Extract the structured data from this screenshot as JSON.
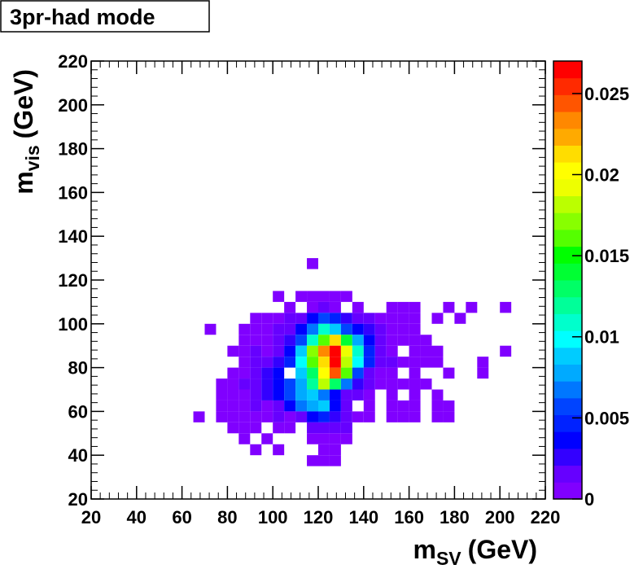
{
  "chart_data": {
    "type": "heatmap",
    "title": "3pr-had mode",
    "xlabel": {
      "main": "m",
      "sub": "SV",
      "unit": "(GeV)"
    },
    "ylabel": {
      "main": "m",
      "sub": "vis",
      "unit": "(GeV)"
    },
    "xlim": [
      20,
      220
    ],
    "ylim": [
      20,
      220
    ],
    "xticks": [
      20,
      40,
      60,
      80,
      100,
      120,
      140,
      160,
      180,
      200,
      220
    ],
    "yticks": [
      20,
      40,
      60,
      80,
      100,
      120,
      140,
      160,
      180,
      200,
      220
    ],
    "zlim": [
      0,
      0.027
    ],
    "zticks": [
      0,
      0.005,
      0.01,
      0.015,
      0.02,
      0.025
    ],
    "palette": [
      "#8000ff",
      "#6600ff",
      "#3300ff",
      "#0000ff",
      "#0022ff",
      "#0044ff",
      "#0077ff",
      "#00aaff",
      "#00ccff",
      "#00ffff",
      "#00ffcc",
      "#00ff99",
      "#00ff66",
      "#00ff33",
      "#00ff00",
      "#55ff00",
      "#88ff00",
      "#bbff00",
      "#eeff00",
      "#ffff00",
      "#ffdd00",
      "#ffaa00",
      "#ff8800",
      "#ff5500",
      "#ff2a00",
      "#ff0000"
    ],
    "rows": [
      {
        "y": 125,
        "x": [
          115
        ],
        "values": [
          0.0005
        ]
      },
      {
        "y": 110,
        "x": [
          100,
          110,
          115,
          120,
          125,
          130
        ],
        "values": [
          0.0005,
          0.0007,
          0.0007,
          0.0007,
          0.0007,
          0.0007
        ]
      },
      {
        "y": 105,
        "x": [
          105,
          115,
          120,
          125,
          135,
          150,
          155,
          160,
          175,
          185,
          200
        ],
        "values": [
          0.0005,
          0.0007,
          0.0015,
          0.001,
          0.0007,
          0.0007,
          0.0007,
          0.0007,
          0.0005,
          0.0005,
          0.0005
        ]
      },
      {
        "y": 100,
        "x": [
          90,
          95,
          100,
          105,
          110,
          115,
          120,
          125,
          130,
          135,
          140,
          145,
          150,
          155,
          160,
          170,
          180
        ],
        "values": [
          0.0007,
          0.0007,
          0.0007,
          0.0015,
          0.002,
          0.004,
          0.006,
          0.005,
          0.003,
          0.002,
          0.002,
          0.001,
          0.0007,
          0.0007,
          0.0007,
          0.0005,
          0.0005
        ]
      },
      {
        "y": 95,
        "x": [
          70,
          85,
          90,
          95,
          100,
          105,
          110,
          115,
          120,
          125,
          130,
          135,
          140,
          145,
          150,
          155,
          160
        ],
        "values": [
          0.0005,
          0.0007,
          0.0007,
          0.001,
          0.0015,
          0.002,
          0.004,
          0.007,
          0.011,
          0.009,
          0.006,
          0.004,
          0.003,
          0.0015,
          0.001,
          0.0007,
          0.0007
        ]
      },
      {
        "y": 90,
        "x": [
          85,
          90,
          95,
          100,
          105,
          110,
          115,
          120,
          125,
          130,
          135,
          140,
          145,
          150,
          155,
          160,
          165
        ],
        "values": [
          0.0007,
          0.0007,
          0.001,
          0.0015,
          0.003,
          0.006,
          0.011,
          0.016,
          0.021,
          0.014,
          0.008,
          0.004,
          0.002,
          0.001,
          0.0007,
          0.0007,
          0.0007
        ]
      },
      {
        "y": 85,
        "x": [
          80,
          85,
          90,
          95,
          100,
          105,
          110,
          115,
          120,
          125,
          130,
          135,
          140,
          145,
          150,
          160,
          165,
          170,
          200
        ],
        "values": [
          0.0007,
          0.0007,
          0.0015,
          0.001,
          0.002,
          0.004,
          0.009,
          0.017,
          0.023,
          0.027,
          0.019,
          0.011,
          0.005,
          0.002,
          0.001,
          0.0007,
          0.0007,
          0.0007,
          0.0005
        ]
      },
      {
        "y": 80,
        "x": [
          85,
          90,
          95,
          100,
          105,
          110,
          115,
          120,
          125,
          130,
          135,
          140,
          145,
          150,
          155,
          160,
          165,
          170,
          190
        ],
        "values": [
          0.0007,
          0.0015,
          0.002,
          0.003,
          0.005,
          0.01,
          0.016,
          0.021,
          0.026,
          0.018,
          0.01,
          0.005,
          0.002,
          0.0015,
          0.001,
          0.0007,
          0.0007,
          0.0007,
          0.0005
        ]
      },
      {
        "y": 75,
        "x": [
          80,
          85,
          90,
          95,
          100,
          110,
          115,
          120,
          125,
          130,
          135,
          140,
          145,
          150,
          160,
          175,
          190
        ],
        "values": [
          0.0007,
          0.001,
          0.002,
          0.0025,
          0.004,
          0.009,
          0.013,
          0.02,
          0.024,
          0.016,
          0.006,
          0.002,
          0.001,
          0.0007,
          0.0007,
          0.0005,
          0.0005
        ]
      },
      {
        "y": 70,
        "x": [
          75,
          80,
          85,
          90,
          95,
          100,
          105,
          110,
          115,
          120,
          125,
          130,
          135,
          140,
          145,
          150,
          155,
          160,
          165
        ],
        "values": [
          0.0007,
          0.001,
          0.0015,
          0.002,
          0.003,
          0.004,
          0.006,
          0.008,
          0.012,
          0.018,
          0.013,
          0.007,
          0.003,
          0.0015,
          0.001,
          0.0007,
          0.0007,
          0.0007,
          0.0005
        ]
      },
      {
        "y": 65,
        "x": [
          75,
          80,
          85,
          90,
          95,
          100,
          105,
          110,
          115,
          120,
          125,
          130,
          135,
          140,
          150,
          160,
          170
        ],
        "values": [
          0.0007,
          0.0007,
          0.001,
          0.002,
          0.003,
          0.004,
          0.006,
          0.008,
          0.009,
          0.007,
          0.004,
          0.002,
          0.002,
          0.001,
          0.0007,
          0.0007,
          0.0005
        ]
      },
      {
        "y": 60,
        "x": [
          75,
          80,
          85,
          90,
          95,
          100,
          105,
          110,
          115,
          120,
          125,
          130,
          140,
          150,
          155,
          160,
          170,
          175
        ],
        "values": [
          0.0007,
          0.0007,
          0.0007,
          0.0015,
          0.001,
          0.002,
          0.004,
          0.007,
          0.008,
          0.009,
          0.004,
          0.0015,
          0.001,
          0.0007,
          0.0007,
          0.0007,
          0.0005,
          0.0005
        ]
      },
      {
        "y": 55,
        "x": [
          65,
          75,
          80,
          85,
          90,
          95,
          100,
          105,
          110,
          115,
          120,
          125,
          130,
          135,
          140,
          150,
          155,
          160,
          170,
          175
        ],
        "values": [
          0.0005,
          0.0007,
          0.0007,
          0.001,
          0.0007,
          0.001,
          0.0015,
          0.001,
          0.002,
          0.004,
          0.005,
          0.003,
          0.002,
          0.001,
          0.0007,
          0.0007,
          0.0007,
          0.0005,
          0.0005,
          0.0005
        ]
      },
      {
        "y": 50,
        "x": [
          80,
          85,
          90,
          100,
          105,
          115,
          120,
          125,
          130
        ],
        "values": [
          0.0007,
          0.0007,
          0.0007,
          0.0007,
          0.0007,
          0.002,
          0.002,
          0.0015,
          0.0015
        ]
      },
      {
        "y": 45,
        "x": [
          85,
          95,
          115,
          120,
          125,
          130
        ],
        "values": [
          0.0007,
          0.0005,
          0.001,
          0.001,
          0.001,
          0.0007
        ]
      },
      {
        "y": 40,
        "x": [
          90,
          100,
          120,
          125
        ],
        "values": [
          0.0005,
          0.0005,
          0.0007,
          0.0007
        ]
      },
      {
        "y": 35,
        "x": [
          115,
          120,
          125
        ],
        "values": [
          0.0007,
          0.0007,
          0.0007
        ]
      }
    ]
  }
}
